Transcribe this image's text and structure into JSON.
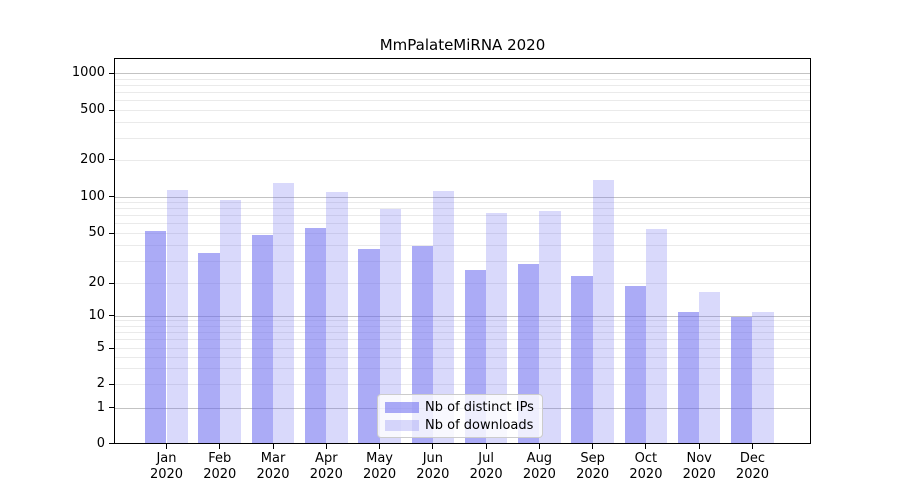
{
  "colors": {
    "ip_bar": "rgba(102,102,238,0.55)",
    "dl_bar": "rgba(102,102,238,0.25)",
    "ip_bar_hex": "#ababf3",
    "dl_bar_hex": "#d9d9fa",
    "grid_major": "#c3c3c3",
    "grid_minor": "#eaeaea",
    "spine": "#000000",
    "legend_border": "#cccccc"
  },
  "legend": {
    "entries": [
      {
        "label": "Nb of distinct IPs",
        "color_key": "ip_bar"
      },
      {
        "label": "Nb of downloads",
        "color_key": "dl_bar"
      }
    ]
  },
  "chart_data": {
    "type": "bar",
    "title": "MmPalateMiRNA 2020",
    "xlabel": "",
    "ylabel": "",
    "year": "2020",
    "categories": [
      "Jan",
      "Feb",
      "Mar",
      "Apr",
      "May",
      "Jun",
      "Jul",
      "Aug",
      "Sep",
      "Oct",
      "Nov",
      "Dec"
    ],
    "series": [
      {
        "name": "Nb of distinct IPs",
        "color_key": "ip_bar",
        "values": [
          53,
          35,
          49,
          56,
          38,
          40,
          26,
          29,
          23,
          19,
          11,
          10
        ]
      },
      {
        "name": "Nb of downloads",
        "color_key": "dl_bar",
        "values": [
          115,
          95,
          130,
          111,
          80,
          112,
          75,
          78,
          140,
          55,
          17,
          11
        ]
      }
    ],
    "y_axis": {
      "scale": "symlog",
      "ticks": [
        1000,
        500,
        200,
        100,
        50,
        20,
        10,
        5,
        2,
        1,
        0
      ],
      "major_gridline_values": [
        1,
        10,
        100,
        1000
      ],
      "minor_gridline_values": [
        2,
        3,
        4,
        5,
        6,
        7,
        8,
        9,
        20,
        30,
        40,
        50,
        60,
        70,
        80,
        90,
        200,
        300,
        400,
        500,
        600,
        700,
        800,
        900
      ],
      "ylim": [
        0,
        1150
      ]
    },
    "grid": true,
    "legend_position": "lower center"
  }
}
